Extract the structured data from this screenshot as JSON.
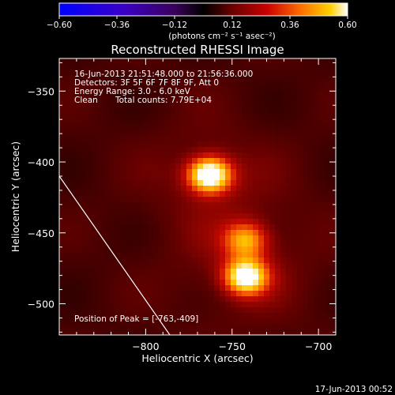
{
  "chart_data": {
    "type": "heatmap",
    "title": "Reconstructed RHESSI Image",
    "xlabel": "Heliocentric X (arcsec)",
    "ylabel": "Heliocentric Y (arcsec)",
    "xlim": [
      -850,
      -690
    ],
    "ylim": [
      -522,
      -327
    ],
    "x_ticks": [
      -800,
      -750,
      -700
    ],
    "x_tick_labels": [
      "−800",
      "−750",
      "−700"
    ],
    "y_ticks": [
      -350,
      -400,
      -450,
      -500
    ],
    "y_tick_labels": [
      "−350",
      "−400",
      "−450",
      "−500"
    ],
    "colorbar": {
      "range": [
        -0.6,
        0.6
      ],
      "ticks": [
        -0.6,
        -0.36,
        -0.12,
        0.12,
        0.36,
        0.6
      ],
      "tick_labels": [
        "−0.60",
        "−0.36",
        "−0.12",
        "0.12",
        "0.36",
        "0.60"
      ],
      "unit": "(photons cm⁻² s⁻¹ asec⁻²)"
    },
    "sources": [
      {
        "x": -763,
        "y": -409,
        "peak": 0.6
      },
      {
        "x": -742,
        "y": -455,
        "peak": 0.33
      },
      {
        "x": -742,
        "y": -481,
        "peak": 0.52
      }
    ],
    "limb_line": [
      [
        -850,
        -410
      ],
      [
        -786,
        -522
      ]
    ],
    "annotations": {
      "time_range": "16-Jun-2013 21:51:48.000 to 21:56:36.000",
      "detectors": "Detectors: 3F 5F 6F 7F 8F 9F, Att 0",
      "energy_range": "Energy Range: 3.0 - 6.0 keV",
      "method": "Clean",
      "total_counts": "Total counts: 7.79E+04",
      "peak_position": "Position of Peak = [-763,-409]"
    },
    "footer_timestamp": "17-Jun-2013 00:52"
  }
}
